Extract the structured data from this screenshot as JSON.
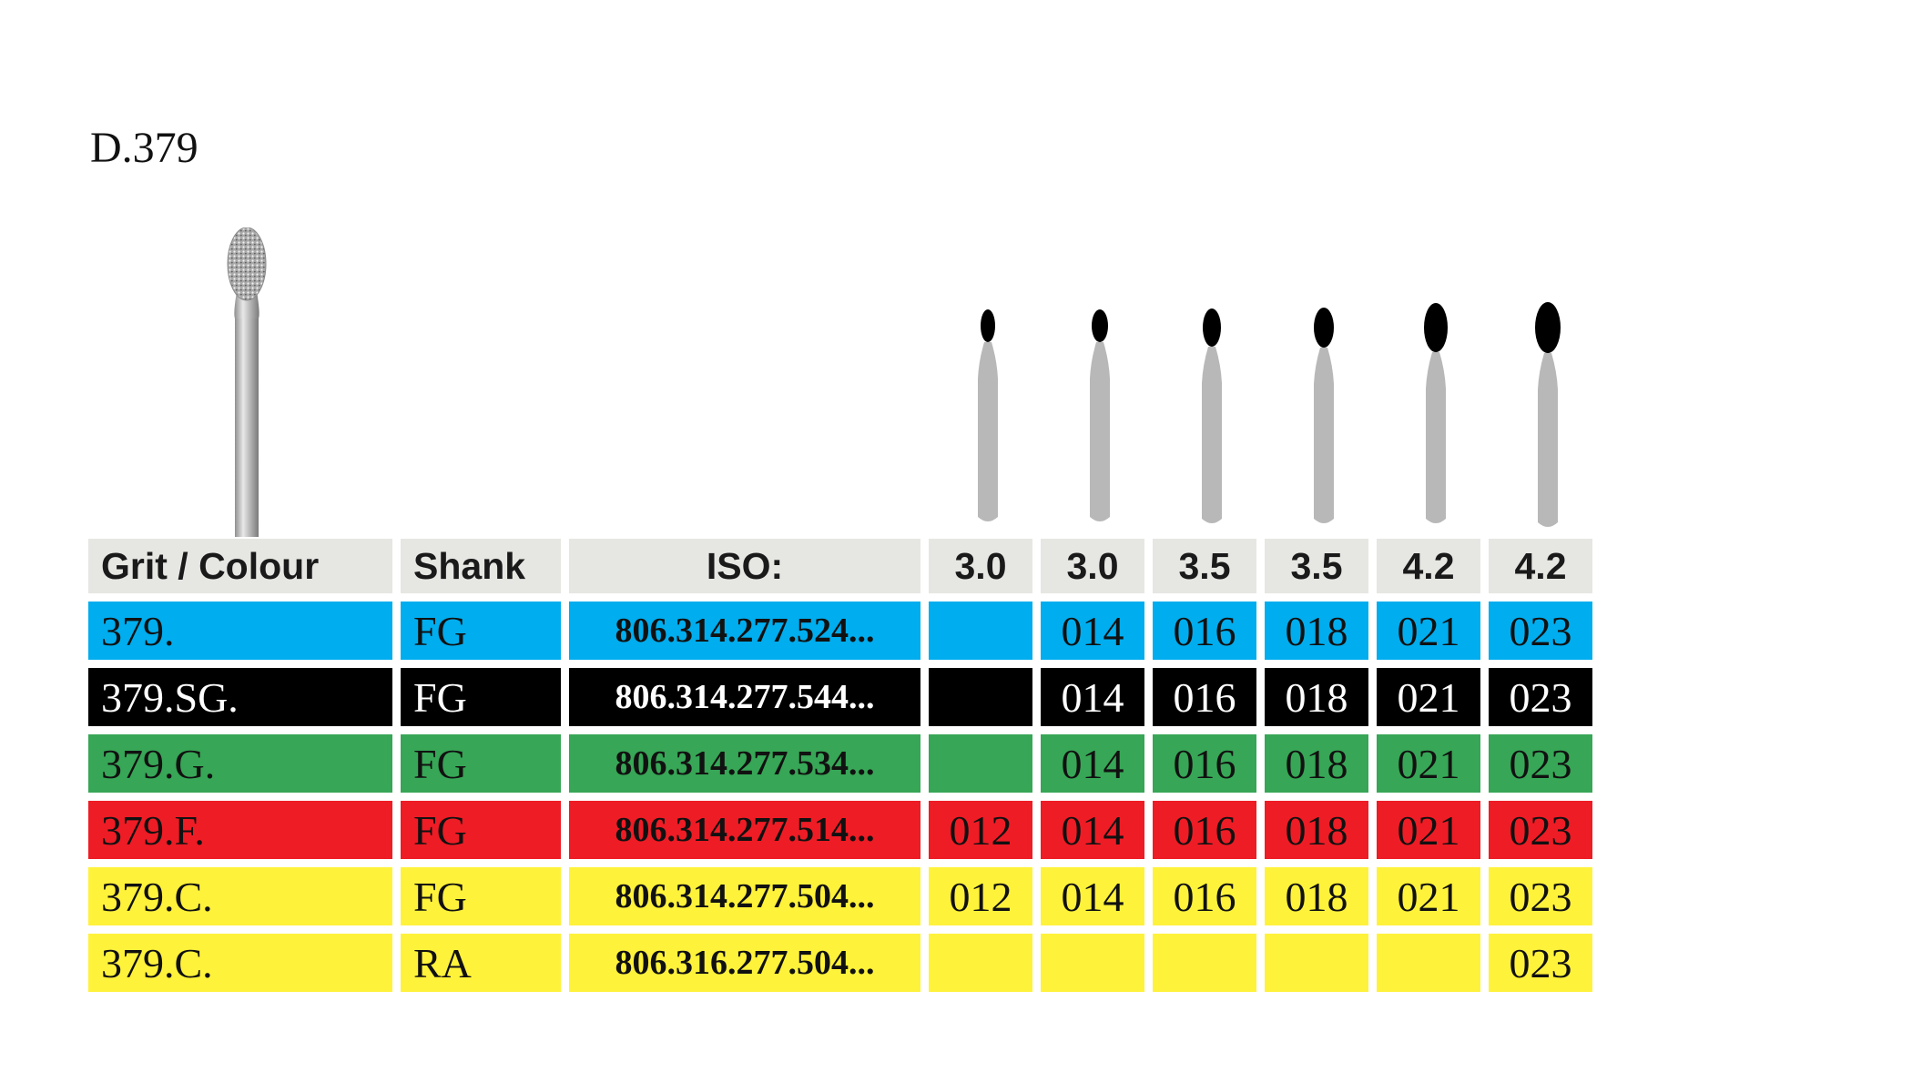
{
  "title": "D.379",
  "colors": {
    "header_bg": "#e6e6e3",
    "blue": "#00adee",
    "black": "#000000",
    "green": "#37a656",
    "red": "#ee1c25",
    "yellow": "#fff23b",
    "shank_grey": "#b8b8b8",
    "head_black": "#000000"
  },
  "icons": {
    "product_photo": "diamond-bur-photo",
    "size_profiles": "bur-profile-icon"
  },
  "table": {
    "headers": [
      "Grit / Colour",
      "Shank",
      "ISO:",
      "3.0",
      "3.0",
      "3.5",
      "3.5",
      "4.2",
      "4.2"
    ],
    "rows": [
      {
        "grit": "379.",
        "shank": "FG",
        "iso": "806.314.277.524...",
        "sizes": [
          "",
          "014",
          "016",
          "018",
          "021",
          "023"
        ],
        "color": "blue",
        "text_color": "#111111"
      },
      {
        "grit": "379.SG.",
        "shank": "FG",
        "iso": "806.314.277.544...",
        "sizes": [
          "",
          "014",
          "016",
          "018",
          "021",
          "023"
        ],
        "color": "black",
        "text_color": "#ffffff"
      },
      {
        "grit": "379.G.",
        "shank": "FG",
        "iso": "806.314.277.534...",
        "sizes": [
          "",
          "014",
          "016",
          "018",
          "021",
          "023"
        ],
        "color": "green",
        "text_color": "#111111"
      },
      {
        "grit": "379.F.",
        "shank": "FG",
        "iso": "806.314.277.514...",
        "sizes": [
          "012",
          "014",
          "016",
          "018",
          "021",
          "023"
        ],
        "color": "red",
        "text_color": "#111111"
      },
      {
        "grit": "379.C.",
        "shank": "FG",
        "iso": "806.314.277.504...",
        "sizes": [
          "012",
          "014",
          "016",
          "018",
          "021",
          "023"
        ],
        "color": "yellow",
        "text_color": "#111111"
      },
      {
        "grit": "379.C.",
        "shank": "RA",
        "iso": "806.316.277.504...",
        "sizes": [
          "",
          "",
          "",
          "",
          "",
          "023"
        ],
        "color": "yellow",
        "text_color": "#111111"
      }
    ]
  }
}
